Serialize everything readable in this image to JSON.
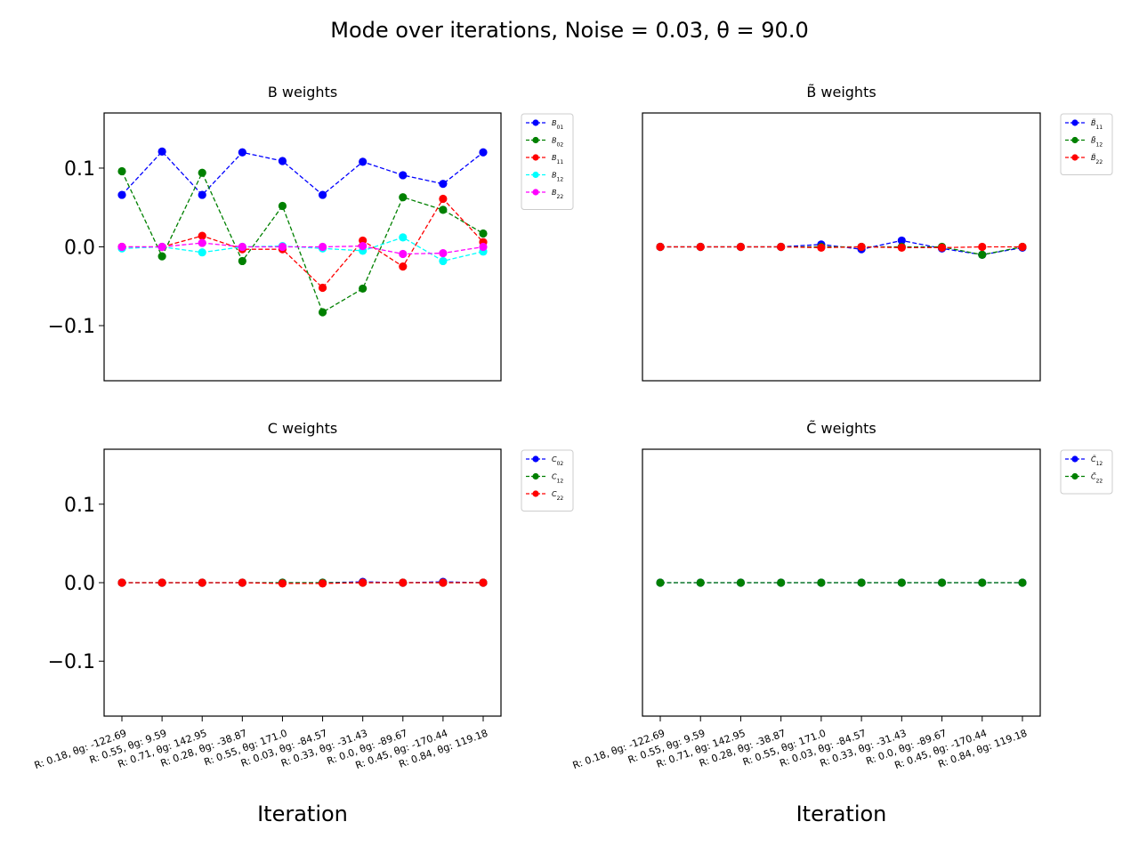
{
  "figure": {
    "suptitle": "Mode over iterations, Noise = 0.03, θ = 90.0"
  },
  "chart_data": [
    {
      "type": "line",
      "title": "B weights",
      "title_symbol": "B",
      "title_tilde": false,
      "xlabel": "",
      "ylim": [
        -0.17,
        0.17
      ],
      "yticks": [
        "0.1",
        "0.0",
        "−0.1"
      ],
      "ytick_values": [
        0.1,
        0.0,
        -0.1
      ],
      "grid": false,
      "legend_position": "outside right",
      "categories": [
        "R: 0.18, θg: -122.69",
        "R: 0.55, θg: 9.59",
        "R: 0.71, θg: 142.95",
        "R: 0.28, θg: -38.87",
        "R: 0.55, θg: 171.0",
        "R: 0.03, θg: -84.57",
        "R: 0.33, θg: -31.43",
        "R: 0.0, θg: -89.67",
        "R: 0.45, θg: -170.44",
        "R: 0.84, θg: 119.18"
      ],
      "series": [
        {
          "name": "B01",
          "color": "#0000ff",
          "values": [
            0.066,
            0.121,
            0.066,
            0.12,
            0.109,
            0.066,
            0.108,
            0.091,
            0.08,
            0.12
          ]
        },
        {
          "name": "B02",
          "color": "#008000",
          "values": [
            0.096,
            -0.012,
            0.094,
            -0.018,
            0.052,
            -0.083,
            -0.053,
            0.063,
            0.047,
            0.017
          ]
        },
        {
          "name": "B11",
          "color": "#ff0000",
          "values": [
            0.0,
            0.0,
            0.014,
            -0.003,
            -0.003,
            -0.052,
            0.008,
            -0.025,
            0.061,
            0.006
          ]
        },
        {
          "name": "B12",
          "color": "#00ffff",
          "values": [
            -0.002,
            0.0,
            -0.007,
            0.0,
            0.001,
            -0.002,
            -0.005,
            0.012,
            -0.018,
            -0.006
          ]
        },
        {
          "name": "B22",
          "color": "#ff00ff",
          "values": [
            0.0,
            0.0,
            0.005,
            0.0,
            0.0,
            0.0,
            0.001,
            -0.009,
            -0.008,
            0.0
          ]
        }
      ]
    },
    {
      "type": "line",
      "title": "B̃ weights",
      "title_symbol": "B",
      "title_tilde": true,
      "xlabel": "",
      "ylim": [
        -0.17,
        0.17
      ],
      "yticks": [],
      "ytick_values": [],
      "grid": false,
      "legend_position": "outside right",
      "categories": [
        "R: 0.18, θg: -122.69",
        "R: 0.55, θg: 9.59",
        "R: 0.71, θg: 142.95",
        "R: 0.28, θg: -38.87",
        "R: 0.55, θg: 171.0",
        "R: 0.03, θg: -84.57",
        "R: 0.33, θg: -31.43",
        "R: 0.0, θg: -89.67",
        "R: 0.45, θg: -170.44",
        "R: 0.84, θg: 119.18"
      ],
      "series": [
        {
          "name": "B̃11",
          "color": "#0000ff",
          "values": [
            0.0,
            0.0,
            0.0,
            0.0,
            0.003,
            -0.003,
            0.008,
            -0.002,
            -0.01,
            -0.001
          ]
        },
        {
          "name": "B̃12",
          "color": "#008000",
          "values": [
            0.0,
            0.0,
            0.0,
            0.0,
            0.0,
            0.0,
            0.0,
            0.0,
            -0.01,
            0.0
          ]
        },
        {
          "name": "B̃22",
          "color": "#ff0000",
          "values": [
            0.0,
            0.0,
            0.0,
            0.0,
            -0.001,
            0.0,
            -0.001,
            -0.001,
            0.0,
            0.0
          ]
        }
      ]
    },
    {
      "type": "line",
      "title": "C weights",
      "title_symbol": "C",
      "title_tilde": false,
      "xlabel": "Iteration",
      "ylim": [
        -0.17,
        0.17
      ],
      "yticks": [
        "0.1",
        "0.0",
        "−0.1"
      ],
      "ytick_values": [
        0.1,
        0.0,
        -0.1
      ],
      "grid": false,
      "legend_position": "outside right",
      "categories": [
        "R: 0.18, θg: -122.69",
        "R: 0.55, θg: 9.59",
        "R: 0.71, θg: 142.95",
        "R: 0.28, θg: -38.87",
        "R: 0.55, θg: 171.0",
        "R: 0.03, θg: -84.57",
        "R: 0.33, θg: -31.43",
        "R: 0.0, θg: -89.67",
        "R: 0.45, θg: -170.44",
        "R: 0.84, θg: 119.18"
      ],
      "series": [
        {
          "name": "C02",
          "color": "#0000ff",
          "values": [
            0.0,
            0.0,
            0.0,
            0.0,
            0.0,
            0.0,
            0.001,
            0.0,
            0.001,
            0.0
          ]
        },
        {
          "name": "C12",
          "color": "#008000",
          "values": [
            0.0,
            0.0,
            0.0,
            0.0,
            0.0,
            0.0,
            0.0,
            0.0,
            0.0,
            0.0
          ]
        },
        {
          "name": "C22",
          "color": "#ff0000",
          "values": [
            0.0,
            0.0,
            0.0,
            0.0,
            -0.001,
            -0.001,
            0.0,
            0.0,
            0.0,
            0.0
          ]
        }
      ]
    },
    {
      "type": "line",
      "title": "C̃ weights",
      "title_symbol": "C",
      "title_tilde": true,
      "xlabel": "Iteration",
      "ylim": [
        -0.17,
        0.17
      ],
      "yticks": [],
      "ytick_values": [],
      "grid": false,
      "legend_position": "outside right",
      "categories": [
        "R: 0.18, θg: -122.69",
        "R: 0.55, θg: 9.59",
        "R: 0.71, θg: 142.95",
        "R: 0.28, θg: -38.87",
        "R: 0.55, θg: 171.0",
        "R: 0.03, θg: -84.57",
        "R: 0.33, θg: -31.43",
        "R: 0.0, θg: -89.67",
        "R: 0.45, θg: -170.44",
        "R: 0.84, θg: 119.18"
      ],
      "series": [
        {
          "name": "C̃12",
          "color": "#0000ff",
          "values": [
            0.0,
            0.0,
            0.0,
            0.0,
            0.0,
            0.0,
            0.0,
            0.0,
            0.0,
            0.0
          ]
        },
        {
          "name": "C̃22",
          "color": "#008000",
          "values": [
            0.0,
            0.0,
            0.0,
            0.0,
            0.0,
            0.0,
            0.0,
            0.0,
            0.0,
            0.0
          ]
        }
      ]
    }
  ]
}
